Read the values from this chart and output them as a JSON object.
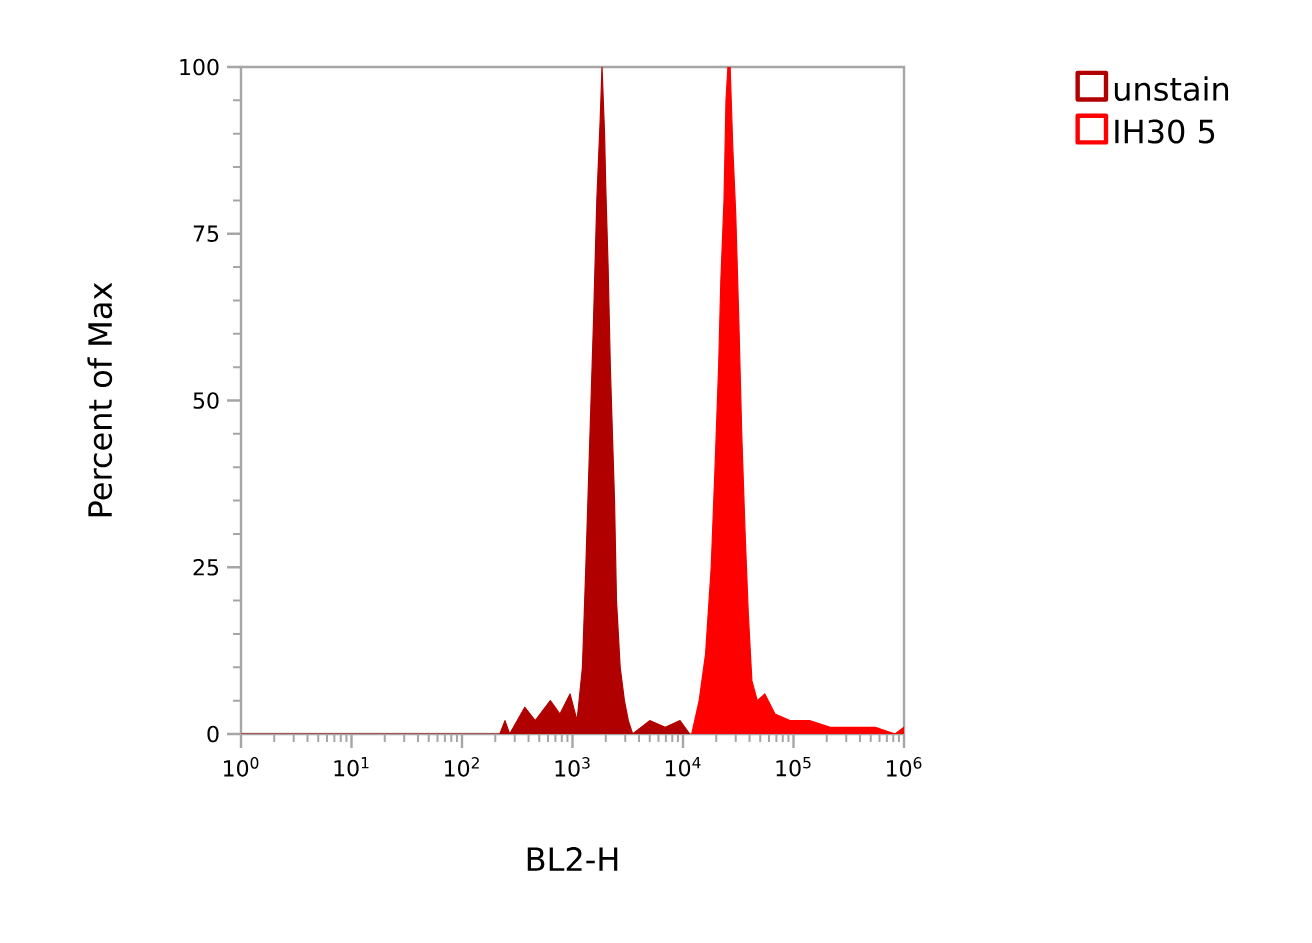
{
  "chart_data": {
    "type": "area",
    "xlabel": "BL2-H",
    "ylabel": "Percent of Max",
    "log": "x",
    "legend": "top right",
    "grid": false,
    "line_style": "solid",
    "marker": "none",
    "xlim": [
      1,
      1000000
    ],
    "ylim": [
      0,
      100
    ],
    "xticks": [
      {
        "value": 1,
        "label": "10$^{0}$"
      },
      {
        "value": 10,
        "label": "10$^{1}$"
      },
      {
        "value": 100,
        "label": "10$^{2}$"
      },
      {
        "value": 1000,
        "label": "10$^{3}$"
      },
      {
        "value": 10000,
        "label": "10$^{4}$"
      },
      {
        "value": 100000,
        "label": "10$^{5}$"
      },
      {
        "value": 1000000,
        "label": "10$^{6}$"
      }
    ],
    "yticks": [
      0,
      25,
      50,
      75,
      100
    ],
    "series": [
      {
        "name": "unstain",
        "color": "#b00000",
        "x": [
          1,
          220,
          245,
          270,
          370,
          460,
          630,
          770,
          950,
          1100,
          1230,
          1320,
          1440,
          1550,
          1660,
          1780,
          1850,
          1950,
          2000,
          2100,
          2200,
          2400,
          2500,
          2700,
          2950,
          3200,
          3500,
          5000,
          6900,
          9400,
          11500
        ],
        "values": [
          0,
          0,
          2,
          0,
          4,
          2,
          5,
          3,
          6,
          2,
          10,
          25,
          45,
          62,
          80,
          92,
          100,
          90,
          82,
          70,
          55,
          35,
          20,
          10,
          5,
          2,
          0,
          2,
          1,
          2,
          0
        ]
      },
      {
        "name": "IH30 5",
        "color": "#ff0000",
        "x": [
          12000,
          14000,
          16000,
          18000,
          19500,
          21000,
          22000,
          23500,
          24500,
          25500,
          26700,
          28200,
          30000,
          32000,
          34000,
          36500,
          39000,
          42000,
          47000,
          55000,
          68000,
          93000,
          140000,
          215000,
          325000,
          550000,
          830000,
          1000000
        ],
        "values": [
          0,
          5,
          12,
          25,
          40,
          55,
          68,
          80,
          95,
          100,
          100,
          88,
          78,
          62,
          45,
          30,
          18,
          8,
          5,
          6,
          3,
          2,
          2,
          1,
          1,
          1,
          0,
          1
        ]
      }
    ]
  }
}
